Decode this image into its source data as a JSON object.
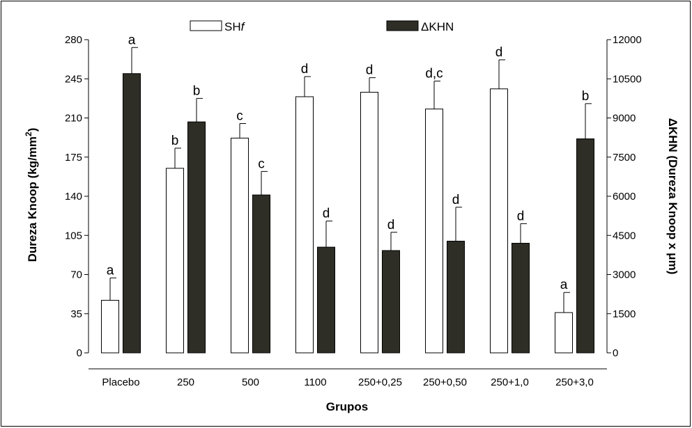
{
  "chart_data": {
    "type": "bar",
    "categories": [
      "Placebo",
      "250",
      "500",
      "1100",
      "250+0,25",
      "250+0,50",
      "250+1,0",
      "250+3,0"
    ],
    "xlabel": "Grupos",
    "ylabel": "Dureza Knoop (kg/mm",
    "ylabel_sup": "2",
    "ylabel_close": ")",
    "y2label": "ΔKHN (Dureza Knoop x μm)",
    "ylim": [
      0,
      280
    ],
    "y_ticks": [
      0,
      35,
      70,
      105,
      140,
      175,
      210,
      245,
      280
    ],
    "y2lim": [
      0,
      12000
    ],
    "y2_ticks": [
      0,
      1500,
      3000,
      4500,
      6000,
      7500,
      9000,
      10500,
      12000
    ],
    "legend_position": "top",
    "series": [
      {
        "name": "SH",
        "name_italic_suffix": "f",
        "axis": "left",
        "fill": "#ffffff",
        "values": [
          47,
          165,
          192,
          229,
          233,
          218,
          236,
          36
        ],
        "errors": [
          20,
          18,
          13,
          18,
          13,
          25,
          26,
          18
        ],
        "labels": [
          "a",
          "b",
          "c",
          "d",
          "d",
          "d,c",
          "d",
          "a"
        ]
      },
      {
        "name": "ΔKHN",
        "axis": "right",
        "fill": "#2e2e26",
        "values": [
          10700,
          8850,
          6050,
          4050,
          3920,
          4280,
          4200,
          8200
        ],
        "errors": [
          1000,
          900,
          900,
          1000,
          700,
          1300,
          750,
          1350
        ],
        "labels": [
          "a",
          "b",
          "c",
          "d",
          "d",
          "d",
          "d",
          "b"
        ]
      }
    ]
  }
}
